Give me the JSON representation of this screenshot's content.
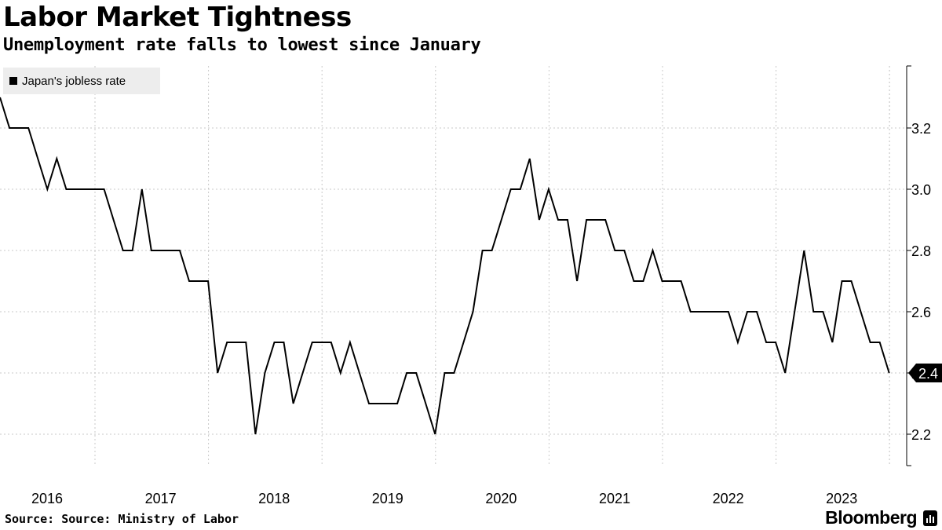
{
  "header": {
    "title": "Labor Market Tightness",
    "subtitle": "Unemployment rate falls to lowest since January"
  },
  "legend": {
    "label": "Japan's jobless rate"
  },
  "footer": {
    "source": "Source: Source: Ministry of Labor",
    "brand": "Bloomberg"
  },
  "chart_data": {
    "type": "line",
    "series": [
      {
        "name": "Japan's jobless rate",
        "color": "#000000",
        "start": "2016-01",
        "values": [
          3.3,
          3.2,
          3.2,
          3.2,
          3.1,
          3.0,
          3.1,
          3.0,
          3.0,
          3.0,
          3.0,
          3.0,
          2.9,
          2.8,
          2.8,
          3.0,
          2.8,
          2.8,
          2.8,
          2.8,
          2.7,
          2.7,
          2.7,
          2.4,
          2.5,
          2.5,
          2.5,
          2.2,
          2.4,
          2.5,
          2.5,
          2.3,
          2.4,
          2.5,
          2.5,
          2.5,
          2.4,
          2.5,
          2.4,
          2.3,
          2.3,
          2.3,
          2.3,
          2.4,
          2.4,
          2.3,
          2.2,
          2.4,
          2.4,
          2.5,
          2.6,
          2.8,
          2.8,
          2.9,
          3.0,
          3.0,
          3.1,
          2.9,
          3.0,
          2.9,
          2.9,
          2.7,
          2.9,
          2.9,
          2.9,
          2.8,
          2.8,
          2.7,
          2.7,
          2.8,
          2.7,
          2.7,
          2.7,
          2.6,
          2.6,
          2.6,
          2.6,
          2.6,
          2.5,
          2.6,
          2.6,
          2.5,
          2.5,
          2.4,
          2.6,
          2.8,
          2.6,
          2.6,
          2.5,
          2.7,
          2.7,
          2.6,
          2.5,
          2.5,
          2.4
        ]
      }
    ],
    "x_ticks": [
      "2016",
      "2017",
      "2018",
      "2019",
      "2020",
      "2021",
      "2022",
      "2023"
    ],
    "y_ticks": [
      "2.2",
      "2.4",
      "2.6",
      "2.8",
      "3.0",
      "3.2"
    ],
    "ylim": [
      2.1,
      3.4
    ],
    "last_value_label": "2.4",
    "grid": true,
    "legend_position": "top-left"
  }
}
